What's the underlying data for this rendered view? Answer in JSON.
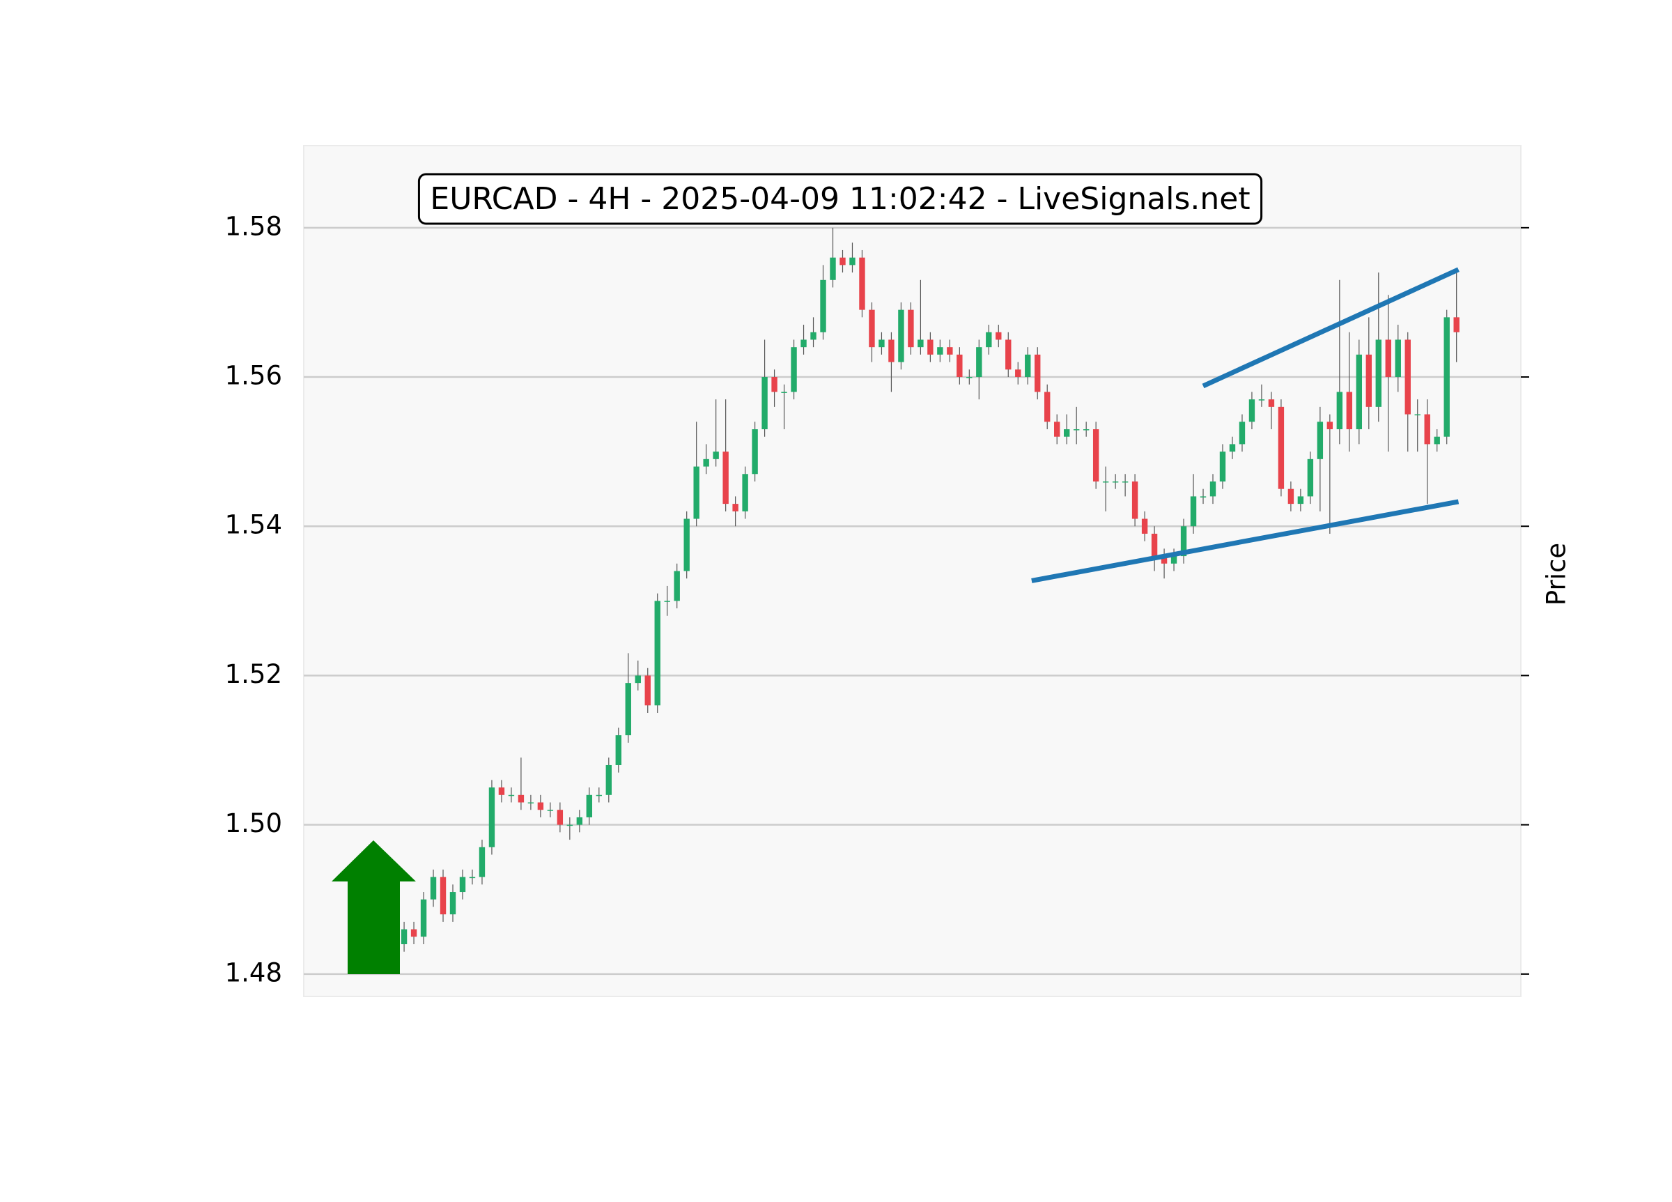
{
  "chart_data": {
    "type": "candlestick",
    "title": "EURCAD - 4H - 2025-04-09 11:02:42 - LiveSignals.net",
    "y_label": "Price",
    "up_color": "#22ab6a",
    "down_color": "#e8434b",
    "xlim": [
      -10.3,
      114.6
    ],
    "ylim": [
      1.477,
      1.591
    ],
    "yticks": [
      1.48,
      {
        "value": 1.5,
        "label": "1.50"
      },
      1.52,
      1.54,
      1.56,
      1.58
    ],
    "grid": true,
    "open": [
      1.484,
      1.486,
      1.485,
      1.49,
      1.493,
      1.488,
      1.491,
      1.493,
      1.493,
      1.497,
      1.505,
      1.504,
      1.504,
      1.503,
      1.503,
      1.502,
      1.502,
      1.5,
      1.5,
      1.501,
      1.504,
      1.504,
      1.508,
      1.512,
      1.519,
      1.52,
      1.516,
      1.53,
      1.53,
      1.534,
      1.541,
      1.548,
      1.549,
      1.55,
      1.543,
      1.542,
      1.547,
      1.553,
      1.56,
      1.558,
      1.558,
      1.564,
      1.565,
      1.566,
      1.573,
      1.576,
      1.575,
      1.576,
      1.569,
      1.564,
      1.565,
      1.562,
      1.569,
      1.564,
      1.565,
      1.563,
      1.564,
      1.563,
      1.56,
      1.56,
      1.564,
      1.566,
      1.565,
      1.561,
      1.56,
      1.563,
      1.558,
      1.554,
      1.552,
      1.553,
      1.553,
      1.553,
      1.546,
      1.546,
      1.546,
      1.546,
      1.541,
      1.539,
      1.536,
      1.535,
      1.536,
      1.54,
      1.544,
      1.544,
      1.546,
      1.55,
      1.551,
      1.554,
      1.557,
      1.557,
      1.556,
      1.545,
      1.543,
      1.544,
      1.549,
      1.554,
      1.553,
      1.558,
      1.553,
      1.563,
      1.556,
      1.565,
      1.56,
      1.565,
      1.555,
      1.555,
      1.551,
      1.552,
      1.568
    ],
    "high": [
      1.487,
      1.487,
      1.491,
      1.494,
      1.494,
      1.492,
      1.494,
      1.494,
      1.498,
      1.506,
      1.506,
      1.505,
      1.509,
      1.504,
      1.504,
      1.503,
      1.503,
      1.501,
      1.502,
      1.505,
      1.505,
      1.509,
      1.513,
      1.523,
      1.522,
      1.521,
      1.531,
      1.532,
      1.535,
      1.542,
      1.554,
      1.551,
      1.557,
      1.557,
      1.544,
      1.548,
      1.554,
      1.565,
      1.561,
      1.559,
      1.565,
      1.567,
      1.568,
      1.575,
      1.58,
      1.577,
      1.578,
      1.577,
      1.57,
      1.566,
      1.566,
      1.57,
      1.57,
      1.573,
      1.566,
      1.565,
      1.565,
      1.564,
      1.561,
      1.565,
      1.567,
      1.567,
      1.566,
      1.562,
      1.564,
      1.564,
      1.559,
      1.555,
      1.555,
      1.556,
      1.554,
      1.554,
      1.548,
      1.547,
      1.547,
      1.547,
      1.542,
      1.54,
      1.537,
      1.537,
      1.541,
      1.547,
      1.545,
      1.547,
      1.551,
      1.552,
      1.555,
      1.558,
      1.559,
      1.558,
      1.557,
      1.546,
      1.545,
      1.55,
      1.556,
      1.555,
      1.573,
      1.566,
      1.565,
      1.568,
      1.574,
      1.571,
      1.567,
      1.566,
      1.557,
      1.557,
      1.553,
      1.569,
      1.574
    ],
    "low": [
      1.483,
      1.484,
      1.484,
      1.489,
      1.487,
      1.487,
      1.49,
      1.492,
      1.492,
      1.496,
      1.503,
      1.503,
      1.502,
      1.502,
      1.501,
      1.501,
      1.499,
      1.498,
      1.499,
      1.5,
      1.503,
      1.503,
      1.507,
      1.511,
      1.518,
      1.515,
      1.515,
      1.528,
      1.529,
      1.533,
      1.54,
      1.547,
      1.548,
      1.542,
      1.54,
      1.541,
      1.546,
      1.552,
      1.556,
      1.553,
      1.557,
      1.563,
      1.564,
      1.565,
      1.572,
      1.574,
      1.574,
      1.568,
      1.562,
      1.563,
      1.558,
      1.561,
      1.563,
      1.563,
      1.562,
      1.562,
      1.562,
      1.559,
      1.559,
      1.557,
      1.563,
      1.564,
      1.56,
      1.559,
      1.559,
      1.557,
      1.553,
      1.551,
      1.551,
      1.551,
      1.552,
      1.545,
      1.542,
      1.545,
      1.544,
      1.54,
      1.538,
      1.534,
      1.533,
      1.534,
      1.535,
      1.539,
      1.543,
      1.543,
      1.545,
      1.549,
      1.55,
      1.553,
      1.556,
      1.553,
      1.544,
      1.542,
      1.542,
      1.543,
      1.542,
      1.539,
      1.551,
      1.55,
      1.551,
      1.553,
      1.554,
      1.55,
      1.558,
      1.55,
      1.55,
      1.543,
      1.55,
      1.551,
      1.562
    ],
    "close": [
      1.486,
      1.485,
      1.49,
      1.493,
      1.488,
      1.491,
      1.493,
      1.493,
      1.497,
      1.505,
      1.504,
      1.504,
      1.503,
      1.503,
      1.502,
      1.502,
      1.5,
      1.5,
      1.501,
      1.504,
      1.504,
      1.508,
      1.512,
      1.519,
      1.52,
      1.516,
      1.53,
      1.53,
      1.534,
      1.541,
      1.548,
      1.549,
      1.55,
      1.543,
      1.542,
      1.547,
      1.553,
      1.56,
      1.558,
      1.558,
      1.564,
      1.565,
      1.566,
      1.573,
      1.576,
      1.575,
      1.576,
      1.569,
      1.564,
      1.565,
      1.562,
      1.569,
      1.564,
      1.565,
      1.563,
      1.564,
      1.563,
      1.56,
      1.56,
      1.564,
      1.566,
      1.565,
      1.561,
      1.56,
      1.563,
      1.558,
      1.554,
      1.552,
      1.553,
      1.553,
      1.553,
      1.546,
      1.546,
      1.546,
      1.546,
      1.541,
      1.539,
      1.536,
      1.535,
      1.536,
      1.54,
      1.544,
      1.544,
      1.546,
      1.55,
      1.551,
      1.554,
      1.557,
      1.557,
      1.556,
      1.545,
      1.543,
      1.544,
      1.549,
      1.554,
      1.553,
      1.558,
      1.553,
      1.563,
      1.556,
      1.565,
      1.56,
      1.565,
      1.555,
      1.555,
      1.551,
      1.552,
      1.568,
      1.566
    ],
    "trendlines": [
      {
        "x": [
          64.4,
          108.2
        ],
        "y": [
          1.5327,
          1.5433
        ],
        "color": "#1f77b4"
      },
      {
        "x": [
          82.0,
          108.2
        ],
        "y": [
          1.5588,
          1.5744
        ],
        "color": "#1f77b4"
      }
    ]
  }
}
